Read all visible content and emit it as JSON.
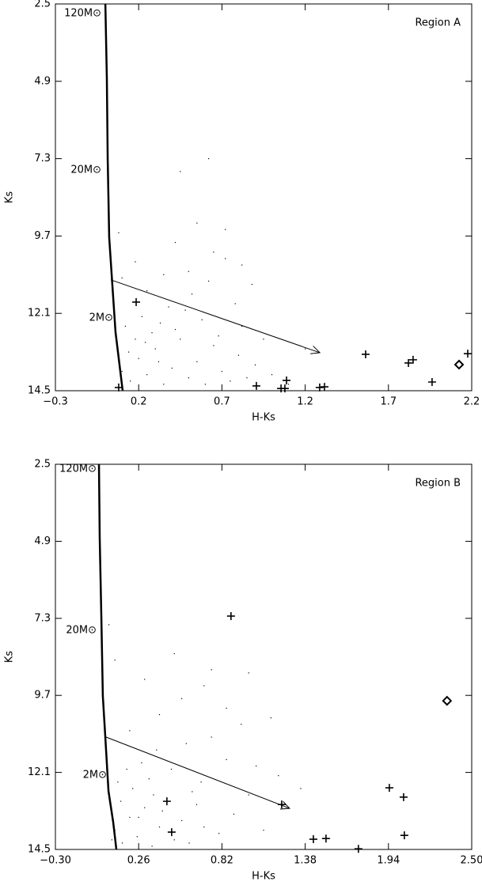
{
  "chart_data": [
    {
      "type": "scatter",
      "title": "Region A",
      "xlabel": "H-Ks",
      "ylabel": "Ks",
      "xlim": [
        -0.3,
        2.2
      ],
      "ylim": [
        14.5,
        2.5
      ],
      "y_inverted": true,
      "xticks": [
        {
          "value": -0.3,
          "label": "−0.3"
        },
        0.2,
        0.7,
        1.2,
        1.7,
        2.2
      ],
      "yticks": [
        2.5,
        4.9,
        7.3,
        9.7,
        12.1,
        14.5
      ],
      "annotations": [
        "120M⊙",
        "20M⊙",
        "2M⊙"
      ],
      "series": [
        {
          "style": "dots",
          "color": "#000",
          "x": [
            0.1,
            0.15,
            0.2,
            0.25,
            0.3,
            0.35,
            0.4,
            0.45,
            0.5,
            0.55,
            0.6,
            0.65,
            0.7,
            0.75,
            0.8,
            0.85,
            0.9,
            1.0,
            1.1,
            0.12,
            0.18,
            0.22,
            0.28,
            0.33,
            0.38,
            0.42,
            0.48,
            0.52,
            0.58,
            0.62,
            0.68,
            0.72,
            0.78,
            0.82,
            0.88,
            0.95,
            0.42,
            0.5,
            0.55,
            0.65,
            0.72,
            0.35,
            0.25,
            0.18,
            0.1,
            0.08,
            0.45,
            0.62,
            0.82,
            1.2,
            0.14,
            0.32,
            0.08,
            0.24
          ],
          "y": [
            13.9,
            14.2,
            13.5,
            14.0,
            13.2,
            14.3,
            13.8,
            12.9,
            14.1,
            13.6,
            14.3,
            13.1,
            13.9,
            14.2,
            13.4,
            14.1,
            13.7,
            14.0,
            14.3,
            12.5,
            12.9,
            12.2,
            12.7,
            12.4,
            11.9,
            12.6,
            12.0,
            11.5,
            12.3,
            11.1,
            12.8,
            10.4,
            11.8,
            12.5,
            11.2,
            12.9,
            9.9,
            10.8,
            9.3,
            10.2,
            9.5,
            10.9,
            11.4,
            10.5,
            11.0,
            9.6,
            7.7,
            7.3,
            10.6,
            13.2,
            13.3,
            13.6,
            14.3,
            13.0
          ]
        },
        {
          "style": "line",
          "color": "#000",
          "x": [
            0.0,
            0.009,
            0.014,
            0.023,
            0.042,
            0.061,
            0.09,
            0.104
          ],
          "y": [
            2.5,
            4.83,
            7.29,
            9.74,
            11.22,
            12.68,
            13.91,
            14.5
          ]
        },
        {
          "style": "arrow",
          "color": "#000",
          "x": [
            0.033,
            1.288
          ],
          "y": [
            11.06,
            13.32
          ]
        },
        {
          "style": "plus",
          "color": "#000",
          "x": [
            0.185,
            0.08,
            0.907,
            1.055,
            1.088,
            1.078,
            1.287,
            1.316,
            1.563,
            1.82,
            1.848,
            1.962,
            2.176
          ],
          "y": [
            11.75,
            14.4,
            14.35,
            14.43,
            14.18,
            14.43,
            14.4,
            14.38,
            13.37,
            13.64,
            13.54,
            14.23,
            13.35
          ]
        },
        {
          "style": "diamond",
          "color": "#000",
          "x": [
            2.124
          ],
          "y": [
            13.69
          ]
        }
      ]
    },
    {
      "type": "scatter",
      "title": "Region B",
      "xlabel": "H-Ks",
      "ylabel": "Ks",
      "xlim": [
        -0.3,
        2.5
      ],
      "ylim": [
        14.5,
        2.5
      ],
      "y_inverted": true,
      "xticks": [
        {
          "value": -0.3,
          "label": "−0.30"
        },
        0.26,
        0.82,
        1.38,
        1.94,
        {
          "value": 2.5,
          "label": "2.50"
        }
      ],
      "yticks": [
        2.5,
        4.9,
        7.3,
        9.7,
        12.1,
        14.5
      ],
      "annotations": [
        "120M⊙",
        "20M⊙",
        "2M⊙"
      ],
      "series": [
        {
          "style": "dots",
          "color": "#000",
          "x": [
            0.1,
            0.15,
            0.2,
            0.25,
            0.3,
            0.35,
            0.4,
            0.45,
            0.5,
            0.55,
            0.6,
            0.65,
            0.7,
            0.8,
            0.9,
            1.0,
            1.1,
            0.12,
            0.18,
            0.22,
            0.28,
            0.33,
            0.38,
            0.48,
            0.58,
            0.68,
            0.75,
            0.85,
            0.95,
            1.05,
            1.2,
            0.4,
            0.55,
            0.7,
            0.85,
            1.0,
            0.3,
            0.2,
            0.1,
            0.06,
            0.5,
            0.75,
            1.15,
            1.35,
            0.14,
            0.26,
            0.42,
            0.62,
            0.08,
            0.36
          ],
          "y": [
            13.9,
            14.3,
            13.5,
            14.1,
            13.2,
            14.4,
            13.8,
            12.9,
            14.2,
            13.6,
            14.3,
            13.1,
            13.8,
            14.0,
            13.4,
            12.8,
            13.9,
            12.4,
            12.0,
            12.6,
            11.8,
            12.3,
            11.4,
            12.0,
            11.2,
            12.4,
            11.0,
            11.7,
            10.6,
            11.9,
            12.2,
            10.3,
            9.8,
            9.4,
            10.1,
            9.0,
            9.2,
            10.8,
            8.6,
            7.5,
            8.4,
            8.9,
            10.4,
            12.6,
            13.0,
            13.5,
            13.3,
            12.7,
            14.2,
            12.8
          ]
        },
        {
          "style": "line",
          "color": "#000",
          "x": [
            -0.007,
            -0.002,
            0.009,
            0.019,
            0.035,
            0.057,
            0.089,
            0.11
          ],
          "y": [
            2.5,
            4.79,
            7.26,
            9.72,
            10.95,
            12.68,
            13.66,
            14.5
          ]
        },
        {
          "style": "arrow",
          "color": "#000",
          "x": [
            0.03,
            1.275
          ],
          "y": [
            10.98,
            13.22
          ]
        },
        {
          "style": "plus",
          "color": "#000",
          "x": [
            0.881,
            1.946,
            2.042,
            0.45,
            1.222,
            0.482,
            1.435,
            1.52,
            1.738,
            2.047
          ],
          "y": [
            7.23,
            12.58,
            12.87,
            13.0,
            13.1,
            13.96,
            14.18,
            14.16,
            14.48,
            14.06
          ]
        },
        {
          "style": "diamond",
          "color": "#000",
          "x": [
            2.334
          ],
          "y": [
            9.87
          ]
        }
      ]
    }
  ]
}
